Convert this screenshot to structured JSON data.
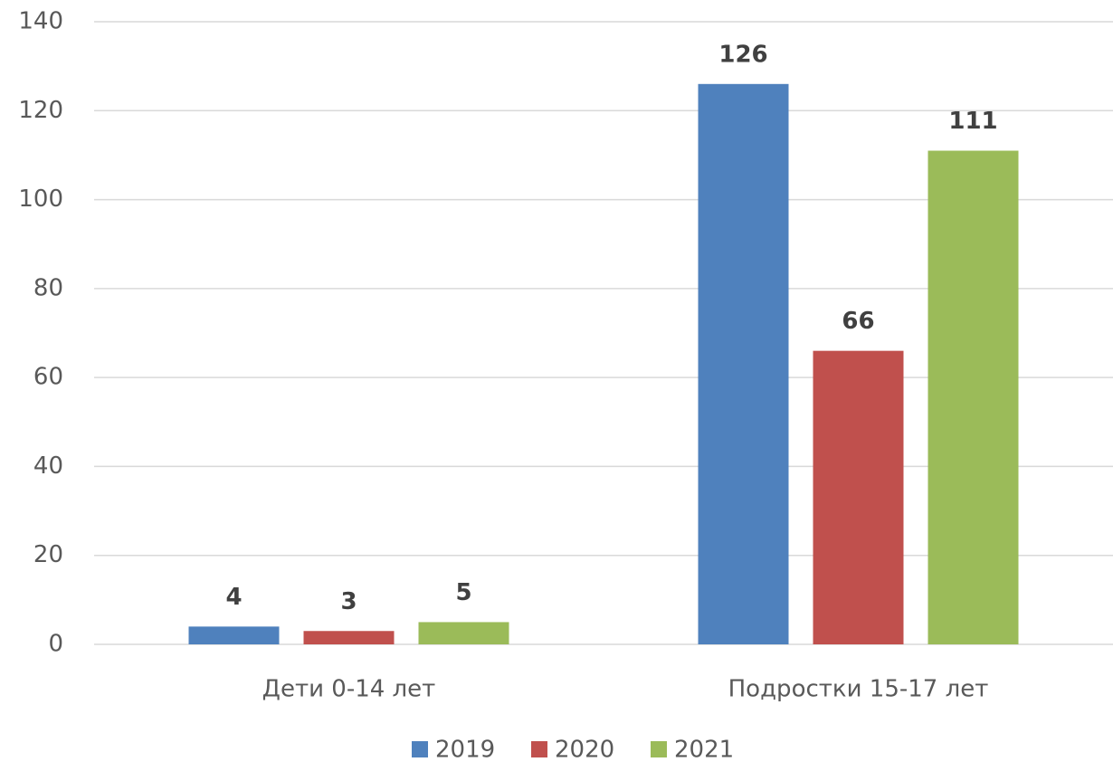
{
  "chart_data": {
    "type": "bar",
    "categories": [
      "Дети 0-14 лет",
      "Подростки  15-17 лет"
    ],
    "series": [
      {
        "name": "2019",
        "color": "#4f81bd",
        "values": [
          4,
          126
        ]
      },
      {
        "name": "2020",
        "color": "#c0504d",
        "values": [
          3,
          66
        ]
      },
      {
        "name": "2021",
        "color": "#9bbb59",
        "values": [
          5,
          111
        ]
      }
    ],
    "ylim": [
      0,
      140
    ],
    "yticks": [
      0,
      20,
      40,
      60,
      80,
      100,
      120,
      140
    ],
    "grid": true,
    "legend": "bottom"
  }
}
